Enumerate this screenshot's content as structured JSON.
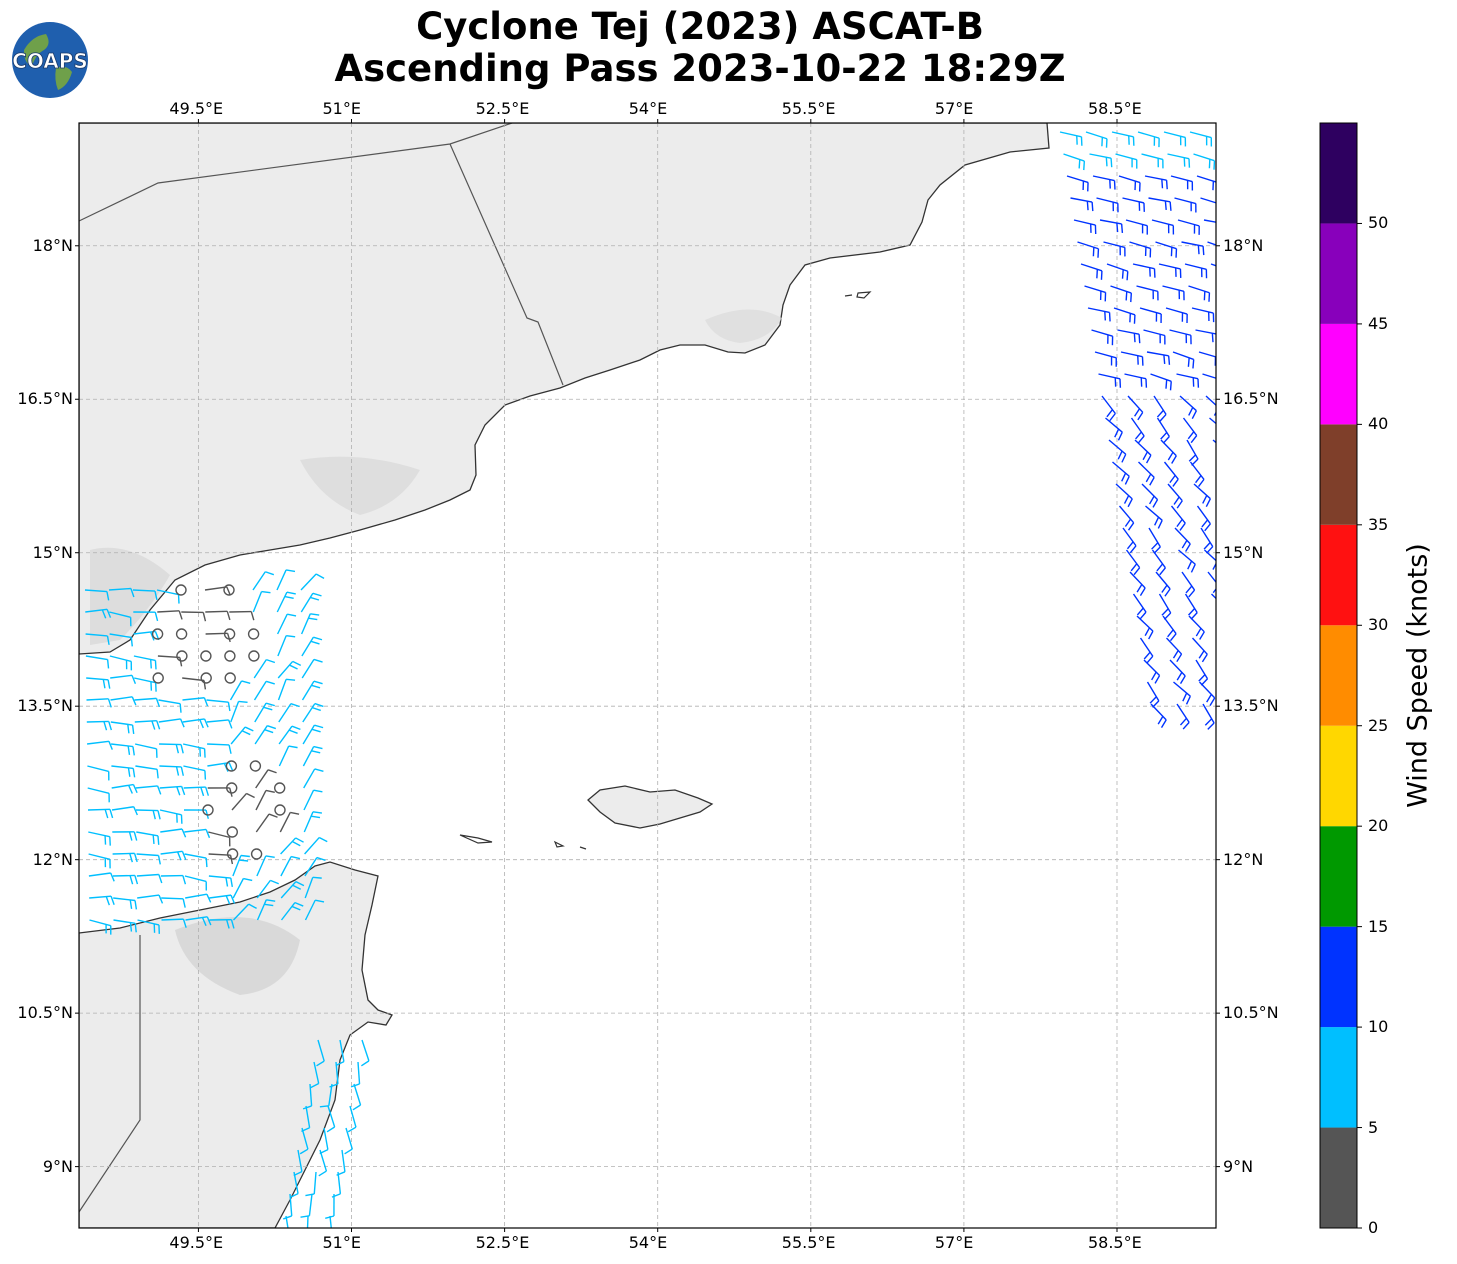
{
  "header": {
    "title_line1": "Cyclone Tej (2023) ASCAT-B",
    "title_line2": "Ascending Pass 2023-10-22 18:29Z",
    "logo_text": "COAPS"
  },
  "map": {
    "lon_labels": [
      "49.5°E",
      "51°E",
      "52.5°E",
      "54°E",
      "55.5°E",
      "57°E",
      "58.5°E"
    ],
    "lat_labels": [
      "18°N",
      "16.5°N",
      "15°N",
      "13.5°N",
      "12°N",
      "10.5°N",
      "9°N"
    ],
    "lon_range": [
      48.33,
      59.47
    ],
    "lat_range": [
      8.4,
      19.2
    ],
    "land_color": "#e9e9e9",
    "coast_color": "#333333",
    "border_color": "#555555",
    "grid_color": "#b0b0b0"
  },
  "colorbar": {
    "label": "Wind Speed (knots)",
    "ticks": [
      "0",
      "5",
      "10",
      "15",
      "20",
      "25",
      "30",
      "35",
      "40",
      "45",
      "50"
    ],
    "bins": [
      {
        "from": 0,
        "to": 5,
        "color": "#555555"
      },
      {
        "from": 5,
        "to": 10,
        "color": "#00bfff"
      },
      {
        "from": 10,
        "to": 15,
        "color": "#0033ff"
      },
      {
        "from": 15,
        "to": 20,
        "color": "#009900"
      },
      {
        "from": 20,
        "to": 25,
        "color": "#ffd700"
      },
      {
        "from": 25,
        "to": 30,
        "color": "#ff8c00"
      },
      {
        "from": 30,
        "to": 35,
        "color": "#ff1111"
      },
      {
        "from": 35,
        "to": 40,
        "color": "#7f3f2a"
      },
      {
        "from": 40,
        "to": 45,
        "color": "#ff00ff"
      },
      {
        "from": 45,
        "to": 50,
        "color": "#8800bb"
      },
      {
        "from": 50,
        "to": 55,
        "color": "#2e0060"
      }
    ]
  }
}
